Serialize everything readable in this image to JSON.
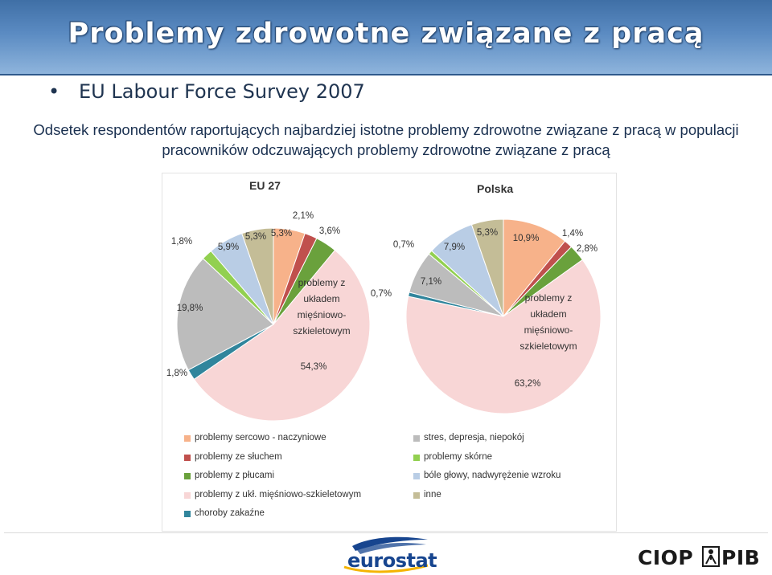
{
  "header": {
    "title": "Problemy zdrowotne związane z pracą"
  },
  "bullet": {
    "symbol": "•",
    "text": "EU Labour Force Survey 2007"
  },
  "description": "Odsetek respondentów raportujących najbardziej istotne problemy zdrowotne związane z pracą w populacji pracowników odczuwających problemy zdrowotne związane z pracą",
  "chart_data": [
    {
      "type": "pie",
      "title": "EU 27",
      "categories": [
        "problemy sercowo - naczyniowe",
        "problemy ze słuchem",
        "problemy z płucami",
        "problemy z ukł. mięśniowo-szkieletowym",
        "choroby zakaźne",
        "stres, depresja, niepokój",
        "problemy skórne",
        "bóle głowy, nadwyrężenie wzroku",
        "inne"
      ],
      "values": [
        5.3,
        2.1,
        3.6,
        54.3,
        1.8,
        19.8,
        1.8,
        5.9,
        5.3
      ],
      "data_labels": [
        "5,3%",
        "2,1%",
        "3,6%",
        "54,3%",
        "1,8%",
        "19,8%",
        "1,8%",
        "5,9%",
        "5,3%"
      ],
      "inner_annotation": [
        "problemy z",
        "układem",
        "mięśniowo-",
        "szkieletowym"
      ],
      "colors": [
        "#f7b28a",
        "#c0504d",
        "#6aa13c",
        "#f8d6d6",
        "#31859c",
        "#bcbcbc",
        "#92d050",
        "#b9cde5",
        "#c4bd97"
      ]
    },
    {
      "type": "pie",
      "title": "Polska",
      "categories": [
        "problemy sercowo - naczyniowe",
        "problemy ze słuchem",
        "problemy z płucami",
        "problemy z ukł. mięśniowo-szkieletowym",
        "choroby zakaźne",
        "stres, depresja, niepokój",
        "problemy skórne",
        "bóle głowy, nadwyrężenie wzroku",
        "inne"
      ],
      "values": [
        10.9,
        1.4,
        2.8,
        63.2,
        0.7,
        7.1,
        0.7,
        7.9,
        5.3
      ],
      "data_labels": [
        "10,9%",
        "1,4%",
        "2,8%",
        "63,2%",
        "0,7%",
        "7,1%",
        "0,7%",
        "7,9%",
        "5,3%"
      ],
      "inner_annotation": [
        "problemy z",
        "układem",
        "mięśniowo-",
        "szkieletowym"
      ],
      "colors": [
        "#f7b28a",
        "#c0504d",
        "#6aa13c",
        "#f8d6d6",
        "#31859c",
        "#bcbcbc",
        "#92d050",
        "#b9cde5",
        "#c4bd97"
      ]
    }
  ],
  "legend": {
    "left": [
      {
        "label": "problemy sercowo - naczyniowe",
        "color": "#f7b28a"
      },
      {
        "label": "problemy ze słuchem",
        "color": "#c0504d"
      },
      {
        "label": "problemy z płucami",
        "color": "#6aa13c"
      },
      {
        "label": "problemy z ukł. mięśniowo-szkieletowym",
        "color": "#f8d6d6"
      },
      {
        "label": "choroby zakaźne",
        "color": "#31859c"
      }
    ],
    "right": [
      {
        "label": "stres, depresja, niepokój",
        "color": "#bcbcbc"
      },
      {
        "label": "problemy skórne",
        "color": "#92d050"
      },
      {
        "label": "bóle głowy, nadwyrężenie wzroku",
        "color": "#b9cde5"
      },
      {
        "label": "inne",
        "color": "#c4bd97"
      }
    ]
  },
  "footer": {
    "eurostat_logo": "eurostat",
    "ciop_logo_left": "CIOP",
    "ciop_logo_right": "PIB"
  }
}
